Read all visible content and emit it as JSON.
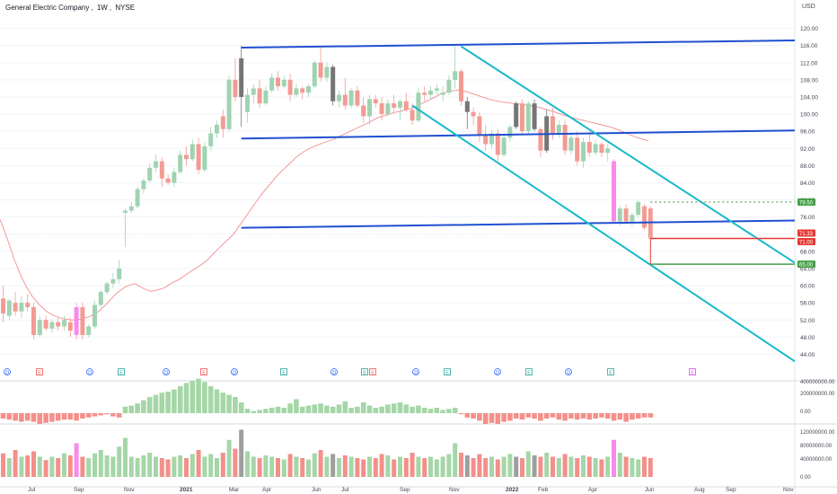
{
  "header": {
    "symbol_name": "General Electric Company",
    "interval": "1W",
    "exchange": "NYSE",
    "currency": "USD"
  },
  "colors": {
    "up": "#9fd3b1",
    "down": "#f39b93",
    "dark": "#757575",
    "magenta": "#f98ae9",
    "ma": "#f28c8c",
    "channel_blue": "#1f4fd1",
    "channel_cyan": "#18b9c9",
    "price_line_red": "#e53935",
    "price_line_green": "#43a047",
    "badge_d": "#2962ff",
    "badge_e": "#26a69a",
    "badge_red": "#ef5350",
    "badge_pink": "#e040fb"
  },
  "chart_data": {
    "type": "candlestick",
    "title": "General Electric Company, 1W, NYSE",
    "currency": "USD",
    "price_axis": {
      "range": [
        42,
        122
      ],
      "ticks": [
        "120.00",
        "116.00",
        "112.00",
        "108.00",
        "104.00",
        "100.00",
        "96.00",
        "92.00",
        "88.00",
        "84.00",
        "80.00",
        "76.00",
        "72.00",
        "68.00",
        "64.00",
        "60.00",
        "56.00",
        "52.00",
        "48.00",
        "44.00"
      ]
    },
    "time_axis": {
      "labels": [
        "Jul",
        "Sep",
        "Nov",
        "2021",
        "Mar",
        "Apr",
        "Jun",
        "Jul",
        "Sep",
        "Nov",
        "2022",
        "Feb",
        "Apr",
        "Jun",
        "Aug",
        "Sep",
        "Nov"
      ]
    },
    "candles": [
      {
        "o": 57.0,
        "h": 60.0,
        "l": 51.5,
        "c": 53.5
      },
      {
        "o": 53.0,
        "h": 57.0,
        "l": 52.0,
        "c": 56.5
      },
      {
        "o": 56.0,
        "h": 58.5,
        "l": 53.0,
        "c": 54.0
      },
      {
        "o": 54.0,
        "h": 57.5,
        "l": 52.5,
        "c": 56.0
      },
      {
        "o": 56.0,
        "h": 58.0,
        "l": 54.0,
        "c": 55.0
      },
      {
        "o": 55.0,
        "h": 56.0,
        "l": 47.5,
        "c": 48.5
      },
      {
        "o": 48.5,
        "h": 53.0,
        "l": 48.0,
        "c": 52.0
      },
      {
        "o": 52.0,
        "h": 53.0,
        "l": 49.5,
        "c": 50.0
      },
      {
        "o": 50.0,
        "h": 52.0,
        "l": 49.0,
        "c": 51.5
      },
      {
        "o": 51.5,
        "h": 52.5,
        "l": 49.5,
        "c": 50.5
      },
      {
        "o": 50.5,
        "h": 53.0,
        "l": 49.5,
        "c": 52.0
      },
      {
        "o": 51.5,
        "h": 52.5,
        "l": 48.0,
        "c": 49.5
      },
      {
        "o": 48.5,
        "h": 56.0,
        "l": 47.5,
        "c": 55.0
      },
      {
        "o": 55.0,
        "h": 56.0,
        "l": 47.5,
        "c": 48.5
      },
      {
        "o": 48.5,
        "h": 51.0,
        "l": 48.0,
        "c": 50.5
      },
      {
        "o": 50.5,
        "h": 56.5,
        "l": 50.0,
        "c": 55.5
      },
      {
        "o": 55.5,
        "h": 59.0,
        "l": 55.0,
        "c": 58.5
      },
      {
        "o": 58.5,
        "h": 61.0,
        "l": 58.0,
        "c": 60.5
      },
      {
        "o": 60.5,
        "h": 63.0,
        "l": 59.5,
        "c": 61.5
      },
      {
        "o": 61.5,
        "h": 66.0,
        "l": 60.5,
        "c": 64.0
      },
      {
        "o": 77.0,
        "h": 78.0,
        "l": 69.0,
        "c": 77.5
      },
      {
        "o": 77.5,
        "h": 79.5,
        "l": 77.0,
        "c": 78.5
      },
      {
        "o": 78.5,
        "h": 83.0,
        "l": 78.0,
        "c": 82.5
      },
      {
        "o": 82.5,
        "h": 85.0,
        "l": 81.5,
        "c": 84.5
      },
      {
        "o": 84.5,
        "h": 88.5,
        "l": 84.0,
        "c": 87.5
      },
      {
        "o": 87.5,
        "h": 90.5,
        "l": 86.5,
        "c": 89.0
      },
      {
        "o": 89.0,
        "h": 90.0,
        "l": 83.0,
        "c": 85.0
      },
      {
        "o": 85.0,
        "h": 86.0,
        "l": 83.5,
        "c": 84.0
      },
      {
        "o": 84.0,
        "h": 87.5,
        "l": 83.0,
        "c": 86.5
      },
      {
        "o": 86.5,
        "h": 91.5,
        "l": 86.0,
        "c": 90.5
      },
      {
        "o": 90.5,
        "h": 92.5,
        "l": 88.0,
        "c": 89.5
      },
      {
        "o": 89.5,
        "h": 94.0,
        "l": 89.0,
        "c": 93.0
      },
      {
        "o": 93.0,
        "h": 94.5,
        "l": 86.0,
        "c": 87.0
      },
      {
        "o": 87.0,
        "h": 93.5,
        "l": 86.5,
        "c": 92.5
      },
      {
        "o": 92.5,
        "h": 97.0,
        "l": 91.5,
        "c": 95.5
      },
      {
        "o": 95.5,
        "h": 98.5,
        "l": 94.5,
        "c": 97.5
      },
      {
        "o": 99.5,
        "h": 101.0,
        "l": 94.5,
        "c": 96.5
      },
      {
        "o": 96.5,
        "h": 109.0,
        "l": 96.0,
        "c": 108.0
      },
      {
        "o": 108.0,
        "h": 113.0,
        "l": 103.0,
        "c": 104.0
      },
      {
        "o": 104.0,
        "h": 116.0,
        "l": 97.0,
        "c": 113.0
      },
      {
        "o": 100.5,
        "h": 106.0,
        "l": 98.0,
        "c": 104.5
      },
      {
        "o": 104.5,
        "h": 107.0,
        "l": 102.5,
        "c": 106.0
      },
      {
        "o": 106.0,
        "h": 108.0,
        "l": 101.5,
        "c": 102.5
      },
      {
        "o": 102.5,
        "h": 106.5,
        "l": 102.0,
        "c": 105.5
      },
      {
        "o": 105.5,
        "h": 109.5,
        "l": 105.0,
        "c": 108.5
      },
      {
        "o": 108.5,
        "h": 110.0,
        "l": 105.5,
        "c": 106.5
      },
      {
        "o": 106.5,
        "h": 109.0,
        "l": 106.0,
        "c": 108.0
      },
      {
        "o": 108.0,
        "h": 109.5,
        "l": 103.0,
        "c": 104.5
      },
      {
        "o": 104.5,
        "h": 107.0,
        "l": 104.0,
        "c": 106.0
      },
      {
        "o": 106.0,
        "h": 106.5,
        "l": 103.5,
        "c": 105.0
      },
      {
        "o": 105.0,
        "h": 107.0,
        "l": 104.0,
        "c": 106.5
      },
      {
        "o": 106.5,
        "h": 112.5,
        "l": 106.0,
        "c": 112.0
      },
      {
        "o": 112.0,
        "h": 115.5,
        "l": 107.5,
        "c": 108.5
      },
      {
        "o": 108.5,
        "h": 112.0,
        "l": 107.5,
        "c": 111.0
      },
      {
        "o": 111.0,
        "h": 111.5,
        "l": 102.0,
        "c": 103.0
      },
      {
        "o": 103.0,
        "h": 105.5,
        "l": 101.5,
        "c": 104.5
      },
      {
        "o": 104.5,
        "h": 108.5,
        "l": 101.0,
        "c": 102.0
      },
      {
        "o": 102.0,
        "h": 106.0,
        "l": 101.5,
        "c": 105.5
      },
      {
        "o": 105.5,
        "h": 106.5,
        "l": 101.5,
        "c": 102.0
      },
      {
        "o": 102.0,
        "h": 104.0,
        "l": 98.0,
        "c": 99.5
      },
      {
        "o": 99.5,
        "h": 104.5,
        "l": 97.5,
        "c": 103.5
      },
      {
        "o": 103.5,
        "h": 104.5,
        "l": 101.5,
        "c": 102.5
      },
      {
        "o": 102.5,
        "h": 104.0,
        "l": 98.5,
        "c": 100.0
      },
      {
        "o": 100.0,
        "h": 103.5,
        "l": 99.5,
        "c": 102.5
      },
      {
        "o": 102.5,
        "h": 104.5,
        "l": 100.5,
        "c": 101.5
      },
      {
        "o": 101.5,
        "h": 103.5,
        "l": 98.5,
        "c": 103.0
      },
      {
        "o": 103.0,
        "h": 105.0,
        "l": 100.5,
        "c": 101.0
      },
      {
        "o": 101.0,
        "h": 102.5,
        "l": 97.5,
        "c": 98.5
      },
      {
        "o": 98.5,
        "h": 106.0,
        "l": 98.0,
        "c": 105.0
      },
      {
        "o": 105.0,
        "h": 106.5,
        "l": 103.0,
        "c": 104.5
      },
      {
        "o": 104.5,
        "h": 106.5,
        "l": 103.5,
        "c": 105.5
      },
      {
        "o": 105.5,
        "h": 107.0,
        "l": 104.5,
        "c": 106.0
      },
      {
        "o": 104.5,
        "h": 106.5,
        "l": 103.0,
        "c": 105.0
      },
      {
        "o": 105.0,
        "h": 109.0,
        "l": 104.5,
        "c": 108.0
      },
      {
        "o": 108.0,
        "h": 116.0,
        "l": 106.0,
        "c": 110.0
      },
      {
        "o": 110.0,
        "h": 110.5,
        "l": 102.0,
        "c": 103.0
      },
      {
        "o": 103.0,
        "h": 104.0,
        "l": 96.5,
        "c": 100.5
      },
      {
        "o": 100.5,
        "h": 101.5,
        "l": 97.5,
        "c": 99.5
      },
      {
        "o": 99.5,
        "h": 100.5,
        "l": 93.5,
        "c": 95.0
      },
      {
        "o": 95.0,
        "h": 97.5,
        "l": 91.5,
        "c": 93.0
      },
      {
        "o": 93.0,
        "h": 96.5,
        "l": 92.0,
        "c": 95.5
      },
      {
        "o": 95.5,
        "h": 96.5,
        "l": 89.0,
        "c": 90.5
      },
      {
        "o": 90.5,
        "h": 95.0,
        "l": 90.0,
        "c": 94.5
      },
      {
        "o": 94.5,
        "h": 97.5,
        "l": 93.5,
        "c": 97.0
      },
      {
        "o": 97.0,
        "h": 103.0,
        "l": 96.5,
        "c": 102.5
      },
      {
        "o": 102.5,
        "h": 103.5,
        "l": 95.5,
        "c": 96.0
      },
      {
        "o": 96.0,
        "h": 103.0,
        "l": 95.5,
        "c": 102.5
      },
      {
        "o": 102.5,
        "h": 103.5,
        "l": 96.0,
        "c": 96.5
      },
      {
        "o": 96.5,
        "h": 97.0,
        "l": 90.0,
        "c": 91.5
      },
      {
        "o": 91.5,
        "h": 101.0,
        "l": 91.0,
        "c": 99.5
      },
      {
        "o": 99.5,
        "h": 101.5,
        "l": 94.0,
        "c": 95.5
      },
      {
        "o": 95.5,
        "h": 98.5,
        "l": 94.5,
        "c": 97.5
      },
      {
        "o": 97.5,
        "h": 98.5,
        "l": 90.5,
        "c": 91.5
      },
      {
        "o": 91.5,
        "h": 95.5,
        "l": 90.5,
        "c": 94.5
      },
      {
        "o": 94.5,
        "h": 96.0,
        "l": 88.0,
        "c": 89.0
      },
      {
        "o": 89.0,
        "h": 94.5,
        "l": 87.5,
        "c": 93.5
      },
      {
        "o": 93.5,
        "h": 96.0,
        "l": 90.0,
        "c": 91.0
      },
      {
        "o": 91.0,
        "h": 94.0,
        "l": 90.5,
        "c": 93.0
      },
      {
        "o": 93.0,
        "h": 93.5,
        "l": 90.0,
        "c": 91.0
      },
      {
        "o": 91.0,
        "h": 93.0,
        "l": 89.0,
        "c": 92.0
      },
      {
        "o": 89.0,
        "h": 89.5,
        "l": 74.5,
        "c": 75.0
      },
      {
        "o": 75.0,
        "h": 78.5,
        "l": 74.0,
        "c": 78.0
      },
      {
        "o": 78.0,
        "h": 79.0,
        "l": 74.5,
        "c": 75.0
      },
      {
        "o": 75.0,
        "h": 77.0,
        "l": 74.0,
        "c": 76.5
      },
      {
        "o": 76.5,
        "h": 80.0,
        "l": 76.0,
        "c": 79.5
      },
      {
        "o": 78.5,
        "h": 79.0,
        "l": 73.0,
        "c": 73.5
      },
      {
        "o": 78.0,
        "h": 78.5,
        "l": 70.5,
        "c": 71.0
      }
    ],
    "moving_average": [
      [
        0,
        75.5
      ],
      [
        8,
        71
      ],
      [
        16,
        66
      ],
      [
        24,
        62
      ],
      [
        30,
        59.5
      ],
      [
        36,
        57.5
      ],
      [
        44,
        55.5
      ],
      [
        52,
        54
      ],
      [
        60,
        53
      ],
      [
        70,
        52.3
      ],
      [
        80,
        52
      ],
      [
        90,
        52.2
      ],
      [
        100,
        52.8
      ],
      [
        110,
        54
      ],
      [
        120,
        56
      ],
      [
        130,
        58.3
      ],
      [
        140,
        59.8
      ],
      [
        150,
        60.5
      ],
      [
        160,
        59.3
      ],
      [
        168,
        58.7
      ],
      [
        176,
        59
      ],
      [
        184,
        59.6
      ],
      [
        192,
        60.7
      ],
      [
        200,
        61.5
      ],
      [
        210,
        63
      ],
      [
        220,
        64.3
      ],
      [
        230,
        65.8
      ],
      [
        240,
        68
      ],
      [
        250,
        70
      ],
      [
        260,
        72
      ],
      [
        270,
        75
      ],
      [
        280,
        78
      ],
      [
        290,
        81
      ],
      [
        300,
        83.5
      ],
      [
        310,
        86
      ],
      [
        320,
        88
      ],
      [
        330,
        90
      ],
      [
        340,
        91.5
      ],
      [
        350,
        92.5
      ],
      [
        360,
        93.3
      ],
      [
        370,
        94
      ],
      [
        380,
        95
      ],
      [
        390,
        96
      ],
      [
        400,
        97
      ],
      [
        410,
        98
      ],
      [
        420,
        99.1
      ],
      [
        430,
        99.8
      ],
      [
        440,
        100.4
      ],
      [
        450,
        100.9
      ],
      [
        460,
        101.5
      ],
      [
        470,
        102.5
      ],
      [
        480,
        103.5
      ],
      [
        490,
        104.6
      ],
      [
        500,
        105.3
      ],
      [
        510,
        105.6
      ],
      [
        520,
        105.2
      ],
      [
        530,
        104.5
      ],
      [
        540,
        103.8
      ],
      [
        550,
        103.2
      ],
      [
        560,
        102.8
      ],
      [
        570,
        102.5
      ],
      [
        580,
        102.3
      ],
      [
        590,
        102
      ],
      [
        600,
        101.6
      ],
      [
        610,
        101
      ],
      [
        620,
        100.3
      ],
      [
        630,
        99.6
      ],
      [
        640,
        99
      ],
      [
        650,
        98.5
      ],
      [
        660,
        98
      ],
      [
        670,
        97.5
      ],
      [
        680,
        97
      ],
      [
        690,
        96.2
      ],
      [
        700,
        95.3
      ],
      [
        710,
        94.5
      ],
      [
        722,
        93.8
      ]
    ],
    "annotations": {
      "price_labels": [
        {
          "value": 79.5,
          "text": "79.50",
          "style": "green-dotted"
        },
        {
          "value": 71.33,
          "text": "71.33",
          "style": "red"
        },
        {
          "value": 71.0,
          "text": "71.00",
          "style": "red"
        },
        {
          "value": 65.0,
          "text": "65.00",
          "style": "green"
        }
      ],
      "events": [
        "D",
        "E",
        "D",
        "E",
        "D",
        "E",
        "D",
        "E",
        "D",
        "E",
        "E",
        "D",
        "E",
        "D",
        "E",
        "D",
        "E",
        "E"
      ]
    },
    "macd_histogram": {
      "axis_ticks": [
        "400000000.00",
        "200000000.00",
        "0.00"
      ],
      "values": [
        -0.25,
        -0.3,
        -0.35,
        -0.4,
        -0.35,
        -0.4,
        -0.5,
        -0.45,
        -0.4,
        -0.35,
        -0.3,
        -0.3,
        -0.35,
        -0.25,
        -0.2,
        -0.15,
        -0.1,
        -0.05,
        -0.15,
        -0.2,
        0.3,
        0.35,
        0.45,
        0.6,
        0.75,
        0.85,
        0.95,
        1.0,
        1.1,
        1.25,
        1.4,
        1.5,
        1.6,
        1.45,
        1.25,
        1.1,
        0.95,
        0.85,
        0.75,
        0.5,
        0.2,
        0.1,
        0.15,
        0.2,
        0.25,
        0.3,
        0.25,
        0.45,
        0.65,
        0.3,
        0.35,
        0.4,
        0.45,
        0.35,
        0.3,
        0.4,
        0.55,
        0.25,
        0.3,
        0.5,
        0.35,
        0.25,
        0.3,
        0.4,
        0.45,
        0.5,
        0.4,
        0.3,
        0.35,
        0.25,
        0.2,
        0.25,
        0.15,
        0.2,
        0.25,
        -0.05,
        -0.2,
        -0.25,
        -0.35,
        -0.5,
        -0.45,
        -0.5,
        -0.4,
        -0.35,
        -0.25,
        -0.3,
        -0.2,
        -0.25,
        -0.35,
        -0.25,
        -0.2,
        -0.3,
        -0.35,
        -0.25,
        -0.3,
        -0.25,
        -0.3,
        -0.25,
        -0.2,
        -0.25,
        -0.35,
        -0.3,
        -0.4,
        -0.3,
        -0.25,
        -0.2,
        -0.2
      ],
      "colors": "positive-green, negative-red"
    },
    "volume": {
      "axis_ticks": [
        "120000000.00",
        "80000000.00",
        "40000000.00",
        "0.00"
      ],
      "values": [
        35,
        28,
        40,
        30,
        32,
        38,
        30,
        25,
        30,
        28,
        35,
        32,
        50,
        30,
        28,
        35,
        40,
        32,
        30,
        45,
        58,
        30,
        28,
        32,
        36,
        30,
        28,
        26,
        30,
        32,
        28,
        34,
        40,
        30,
        34,
        28,
        36,
        55,
        42,
        70,
        38,
        30,
        28,
        32,
        30,
        28,
        26,
        34,
        30,
        28,
        26,
        35,
        40,
        30,
        34,
        28,
        32,
        30,
        28,
        26,
        30,
        28,
        34,
        32,
        26,
        30,
        28,
        36,
        30,
        28,
        30,
        26,
        30,
        34,
        50,
        36,
        32,
        28,
        34,
        28,
        30,
        26,
        30,
        34,
        30,
        28,
        38,
        32,
        30,
        36,
        30,
        28,
        34,
        30,
        28,
        32,
        30,
        28,
        26,
        30,
        55,
        36,
        30,
        28,
        26,
        30,
        28
      ]
    }
  }
}
